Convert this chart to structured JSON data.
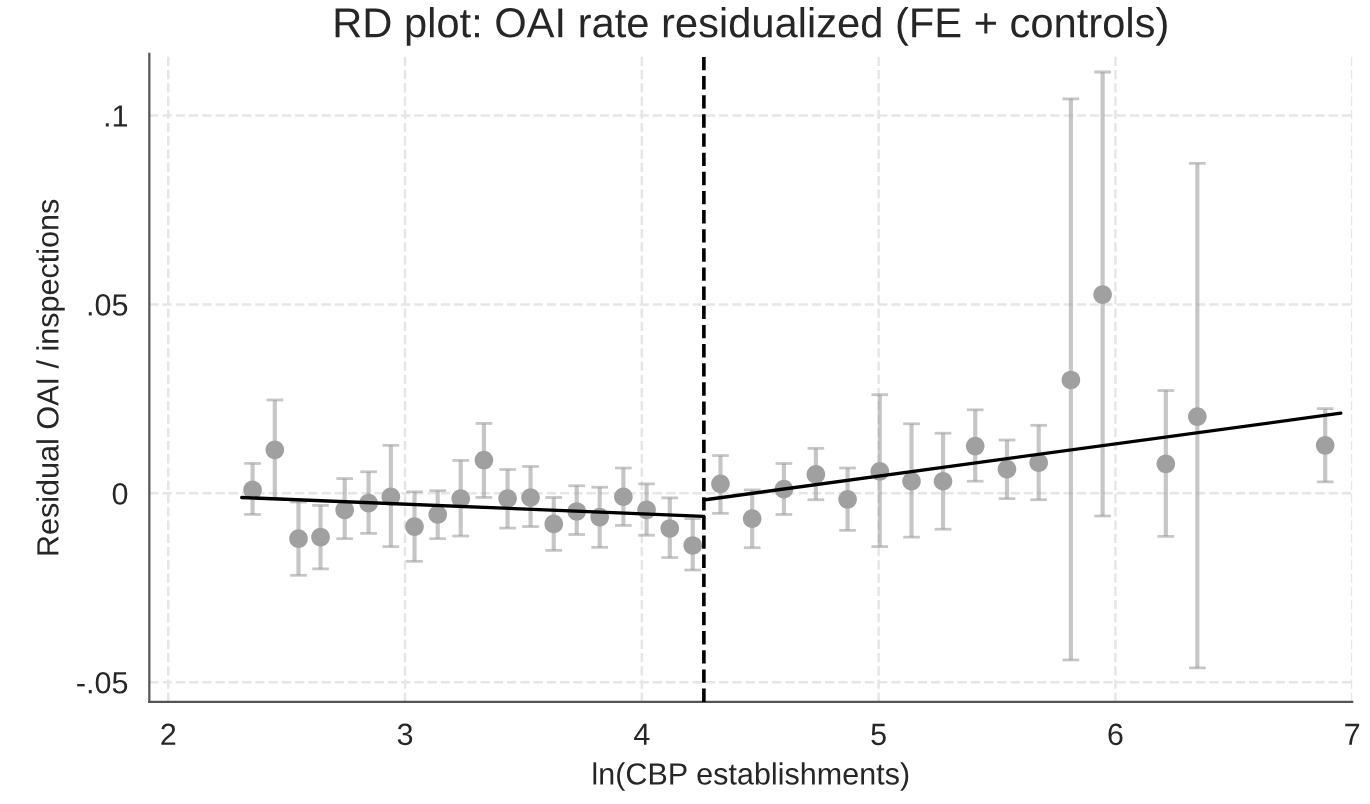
{
  "chart_data": {
    "type": "scatter",
    "title": "RD plot: OAI rate residualized (FE + controls)",
    "xlabel": "ln(CBP establishments)",
    "ylabel": "Residual OAI / inspections",
    "xlim": [
      1.92,
      7.0
    ],
    "xticks": [
      2,
      3,
      4,
      5,
      6,
      7
    ],
    "ylim": [
      -0.0552,
      0.1163
    ],
    "yticks": [
      {
        "value": -0.05,
        "label": "-.05"
      },
      {
        "value": 0,
        "label": "0"
      },
      {
        "value": 0.05,
        "label": ".05"
      },
      {
        "value": 0.1,
        "label": ".1"
      }
    ],
    "grid": true,
    "marker": "circle",
    "ref_lines": [
      {
        "axis": "x",
        "value": 4.262,
        "color": "#000000",
        "line_style": "dashed"
      }
    ],
    "series": [
      {
        "color": "#a0a0a0",
        "x": [
          2.356,
          2.45,
          2.55,
          2.643,
          2.745,
          2.846,
          2.94,
          3.04,
          3.138,
          3.235,
          3.333,
          3.433,
          3.53,
          3.628,
          3.725,
          3.822,
          3.922,
          4.02,
          4.118,
          4.215,
          4.332,
          4.466,
          4.6,
          4.735,
          4.869,
          5.005,
          5.139,
          5.272,
          5.408,
          5.542,
          5.676,
          5.812,
          5.946,
          6.213,
          6.346,
          6.886
        ],
        "values": [
          0.0009,
          0.0115,
          -0.012,
          -0.0116,
          -0.0044,
          -0.0026,
          -0.0009,
          -0.0088,
          -0.0056,
          -0.0014,
          0.0088,
          -0.0014,
          -0.0011,
          -0.0081,
          -0.0048,
          -0.0063,
          -0.0009,
          -0.0044,
          -0.0093,
          -0.0138,
          0.0025,
          -0.0067,
          0.0011,
          0.005,
          -0.0016,
          0.0058,
          0.0032,
          0.0032,
          0.0125,
          0.0064,
          0.0081,
          0.03,
          0.0526,
          0.0078,
          0.0203,
          0.0127
        ],
        "errors": [
          [
            -0.0056,
            0.0079
          ],
          [
            -0.0014,
            0.0247
          ],
          [
            -0.0217,
            -0.0023
          ],
          [
            -0.02,
            -0.0032
          ],
          [
            -0.012,
            0.0039
          ],
          [
            -0.0106,
            0.0057
          ],
          [
            -0.0141,
            0.0127
          ],
          [
            -0.018,
            0.0004
          ],
          [
            -0.012,
            0.0007
          ],
          [
            -0.0113,
            0.0087
          ],
          [
            -0.0011,
            0.0185
          ],
          [
            -0.0092,
            0.0063
          ],
          [
            -0.0088,
            0.0071
          ],
          [
            -0.0151,
            -0.0011
          ],
          [
            -0.0109,
            0.002
          ],
          [
            -0.0143,
            0.0016
          ],
          [
            -0.0085,
            0.0067
          ],
          [
            -0.0111,
            0.0025
          ],
          [
            -0.017,
            -0.0012
          ],
          [
            -0.0203,
            -0.0067
          ],
          [
            -0.0053,
            0.01
          ],
          [
            -0.0144,
            0.0009
          ],
          [
            -0.0056,
            0.0079
          ],
          [
            -0.0017,
            0.0119
          ],
          [
            -0.0098,
            0.0067
          ],
          [
            -0.0141,
            0.0261
          ],
          [
            -0.0116,
            0.0184
          ],
          [
            -0.0095,
            0.0159
          ],
          [
            0.0032,
            0.0221
          ],
          [
            -0.0014,
            0.0141
          ],
          [
            -0.0017,
            0.018
          ],
          [
            -0.0441,
            0.1044
          ],
          [
            -0.006,
            0.1115
          ],
          [
            -0.0114,
            0.0272
          ],
          [
            -0.0462,
            0.0873
          ],
          [
            0.003,
            0.0224
          ]
        ]
      },
      {
        "type": "line",
        "color": "#000000",
        "marker": "none",
        "x": [
          2.31,
          4.262
        ],
        "values": [
          -0.0011,
          -0.0061
        ]
      },
      {
        "type": "line",
        "color": "#000000",
        "marker": "none",
        "x": [
          4.268,
          6.952
        ],
        "values": [
          -0.0017,
          0.0212
        ]
      }
    ]
  }
}
